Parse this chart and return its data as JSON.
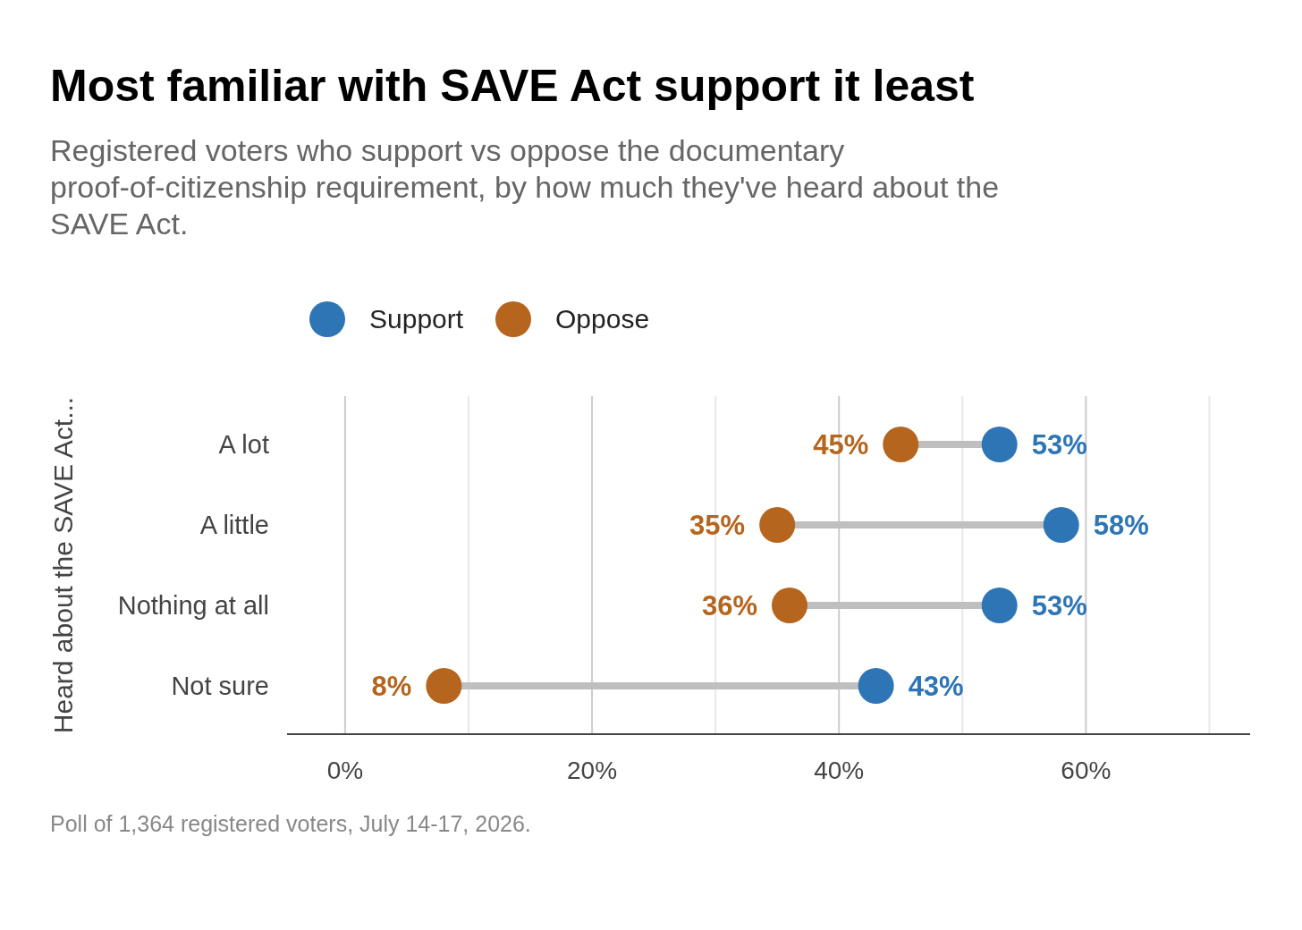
{
  "chart_data": {
    "type": "scatter",
    "orientation": "horizontal",
    "title": "Most familiar with SAVE Act support it least",
    "subtitle": "Registered voters who support vs oppose the documentary proof-of-citizenship requirement, by how much they've heard about the SAVE Act.",
    "ylabel": "Heard about the SAVE Act...",
    "categories": [
      "A lot",
      "A little",
      "Nothing at all",
      "Not sure"
    ],
    "series": [
      {
        "name": "Support",
        "color": "#2e75b6",
        "values": [
          53,
          58,
          53,
          43
        ],
        "value_labels": [
          "53%",
          "58%",
          "53%",
          "43%"
        ]
      },
      {
        "name": "Oppose",
        "color": "#b5651d",
        "values": [
          45,
          35,
          36,
          8
        ],
        "value_labels": [
          "45%",
          "35%",
          "36%",
          "8%"
        ]
      }
    ],
    "xlim": [
      -4.7,
      73.3
    ],
    "xticks": [
      {
        "value": 0,
        "label": "0%"
      },
      {
        "value": 10,
        "label": null
      },
      {
        "value": 20,
        "label": "20%"
      },
      {
        "value": 30,
        "label": null
      },
      {
        "value": 40,
        "label": "40%"
      },
      {
        "value": 50,
        "label": null
      },
      {
        "value": 60,
        "label": "60%"
      },
      {
        "value": 70,
        "label": null
      }
    ],
    "grid": "x",
    "legend": "top",
    "marker": "circle",
    "annotations": [
      "Poll of 1,364 registered voters, July 14-17, 2026."
    ]
  }
}
